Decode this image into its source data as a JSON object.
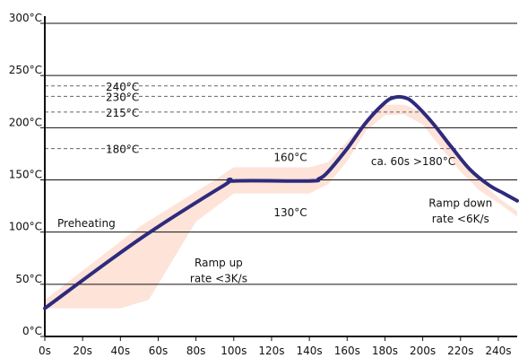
{
  "chart_data": {
    "type": "line",
    "title": "",
    "xlabel": "",
    "ylabel": "",
    "xlim": [
      0,
      250
    ],
    "ylim": [
      0,
      300
    ],
    "x_ticks": [
      0,
      20,
      40,
      60,
      80,
      100,
      120,
      140,
      160,
      180,
      200,
      220,
      240
    ],
    "x_tick_labels": [
      "0s",
      "20s",
      "40s",
      "60s",
      "80s",
      "100s",
      "120s",
      "140s",
      "160s",
      "180s",
      "200s",
      "220s",
      "240s"
    ],
    "y_ticks": [
      0,
      50,
      100,
      150,
      200,
      250,
      300
    ],
    "y_tick_labels": [
      "0°C",
      "50°C",
      "100°C",
      "150°C",
      "200°C",
      "250°C",
      "300°C"
    ],
    "grid": "horizontal",
    "reference_lines": [
      {
        "y": 240,
        "label": "240°C"
      },
      {
        "y": 230,
        "label": "230°C"
      },
      {
        "y": 215,
        "label": "215°C"
      },
      {
        "y": 180,
        "label": "180°C"
      }
    ],
    "series": [
      {
        "color": "#2e2a7c",
        "x": [
          0,
          50,
          95,
          100,
          140,
          145,
          150,
          160,
          170,
          180,
          185,
          190,
          195,
          205,
          215,
          225,
          235,
          243,
          250
        ],
        "y": [
          27,
          93,
          145,
          149,
          149,
          151,
          158,
          180,
          205,
          224,
          229,
          229,
          224,
          205,
          182,
          160,
          145,
          137,
          130
        ]
      }
    ],
    "tolerance_band": {
      "color": "#fde3d8",
      "x": [
        0,
        50,
        90,
        100,
        140,
        150,
        160,
        170,
        180,
        190,
        200,
        210,
        220,
        230,
        240,
        250,
        250,
        240,
        230,
        220,
        210,
        200,
        190,
        180,
        170,
        160,
        150,
        140,
        100,
        80,
        55,
        40,
        0
      ],
      "y": [
        35,
        105,
        150,
        162,
        162,
        167,
        187,
        207,
        222,
        222,
        215,
        195,
        170,
        150,
        133,
        120,
        115,
        128,
        140,
        158,
        180,
        203,
        213,
        212,
        197,
        168,
        146,
        137,
        137,
        110,
        35,
        27,
        27
      ]
    },
    "annotations": [
      {
        "text": "160°C",
        "x": 130,
        "y": 168
      },
      {
        "text": "130°C",
        "x": 130,
        "y": 115
      },
      {
        "text": "ca. 60s >180°C",
        "x": 195,
        "y": 164
      },
      {
        "text": "Preheating",
        "x": 22,
        "y": 105
      },
      {
        "text": "Ramp up",
        "x": 92,
        "y": 67
      },
      {
        "text": "rate <3K/s",
        "x": 92,
        "y": 52
      },
      {
        "text": "Ramp down",
        "x": 220,
        "y": 124
      },
      {
        "text": "rate <6K/s",
        "x": 220,
        "y": 109
      }
    ]
  },
  "colors": {
    "line": "#2e2a7c",
    "band": "#fde3d8",
    "axis": "#111111",
    "grid": "#111111",
    "reference": "#666666"
  }
}
